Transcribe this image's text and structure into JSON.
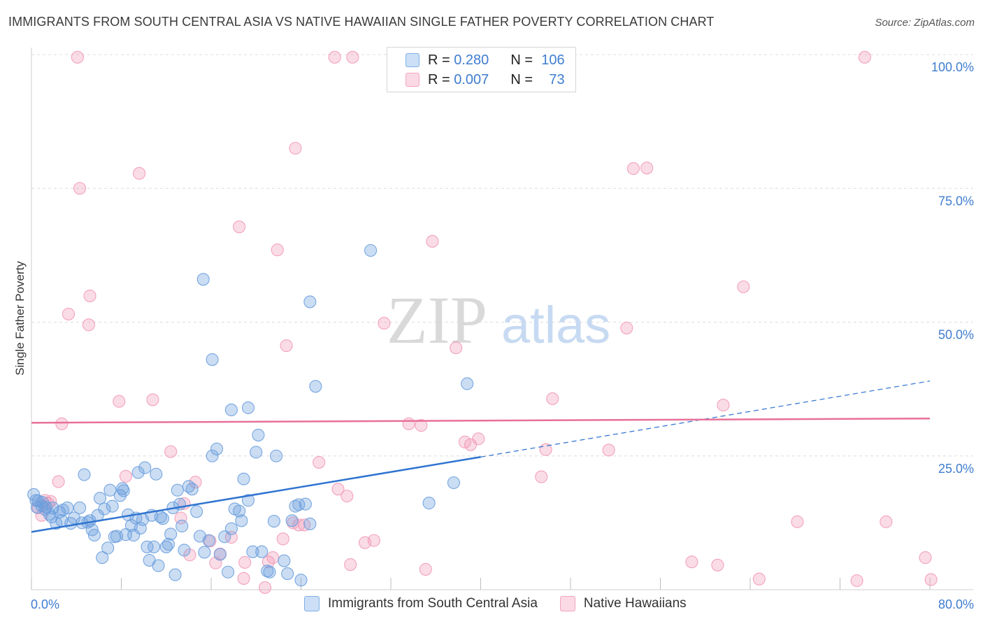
{
  "title": "IMMIGRANTS FROM SOUTH CENTRAL ASIA VS NATIVE HAWAIIAN SINGLE FATHER POVERTY CORRELATION CHART",
  "source": "Source: ZipAtlas.com",
  "watermark": {
    "zip": "ZIP",
    "atlas": "atlas"
  },
  "legend": {
    "r_label": "R =",
    "n_label": "N =",
    "rows": [
      {
        "r": "0.280",
        "n": "106",
        "color": "#7fb0e8"
      },
      {
        "r": "0.007",
        "n": "73",
        "color": "#f4a3bd"
      }
    ]
  },
  "colors": {
    "blue": "#6a9fde",
    "blue_line": "#2f74d0",
    "pink": "#f29ab7",
    "pink_line": "#e8709a",
    "axis_text": "#3f7dd0"
  },
  "chart_data": {
    "type": "scatter",
    "title": "IMMIGRANTS FROM SOUTH CENTRAL ASIA VS NATIVE HAWAIIAN SINGLE FATHER POVERTY CORRELATION CHART",
    "ylabel": "Single Father Poverty",
    "xlabel": "",
    "xlim": [
      0,
      80
    ],
    "ylim": [
      0,
      100
    ],
    "x_tick_labels": [
      "0.0%",
      "80.0%"
    ],
    "y_ticks": [
      25,
      50,
      75,
      100
    ],
    "y_tick_labels": [
      "25.0%",
      "50.0%",
      "75.0%",
      "100.0%"
    ],
    "grid": true,
    "legend_position": "top-center",
    "series": [
      {
        "name": "Immigrants from South Central Asia",
        "color": "#6a9fde",
        "trend": {
          "x0": 0,
          "y0": 10.8,
          "x1": 40,
          "y1": 24.8,
          "dashed_to_x": 80,
          "dashed_to_y": 39
        },
        "points": [
          [
            0.2,
            17.8
          ],
          [
            0.4,
            16.7
          ],
          [
            0.5,
            15.4
          ],
          [
            0.6,
            16.6
          ],
          [
            0.9,
            15.7
          ],
          [
            1.0,
            16.3
          ],
          [
            1.2,
            15.0
          ],
          [
            1.3,
            15.4
          ],
          [
            1.6,
            14.1
          ],
          [
            1.8,
            13.6
          ],
          [
            1.9,
            15.3
          ],
          [
            2.2,
            12.4
          ],
          [
            2.5,
            14.5
          ],
          [
            2.7,
            12.9
          ],
          [
            2.8,
            14.9
          ],
          [
            3.2,
            15.3
          ],
          [
            3.5,
            12.4
          ],
          [
            3.8,
            13.4
          ],
          [
            4.3,
            15.3
          ],
          [
            4.5,
            12.5
          ],
          [
            4.7,
            21.5
          ],
          [
            5.0,
            12.6
          ],
          [
            5.2,
            12.9
          ],
          [
            5.4,
            11.2
          ],
          [
            5.6,
            10.2
          ],
          [
            5.9,
            13.9
          ],
          [
            6.1,
            17.1
          ],
          [
            6.3,
            6.0
          ],
          [
            6.5,
            15.1
          ],
          [
            6.8,
            7.8
          ],
          [
            7.0,
            18.6
          ],
          [
            7.2,
            15.6
          ],
          [
            7.4,
            9.9
          ],
          [
            7.6,
            10.0
          ],
          [
            7.9,
            17.6
          ],
          [
            8.1,
            18.9
          ],
          [
            8.2,
            18.5
          ],
          [
            8.4,
            10.3
          ],
          [
            8.6,
            14.0
          ],
          [
            8.9,
            12.0
          ],
          [
            9.1,
            10.2
          ],
          [
            9.3,
            13.4
          ],
          [
            9.5,
            21.9
          ],
          [
            9.7,
            11.5
          ],
          [
            9.9,
            13.1
          ],
          [
            10.1,
            22.8
          ],
          [
            10.3,
            8.0
          ],
          [
            10.5,
            5.5
          ],
          [
            10.7,
            13.9
          ],
          [
            10.9,
            8.0
          ],
          [
            11.1,
            21.6
          ],
          [
            11.3,
            4.5
          ],
          [
            11.5,
            13.6
          ],
          [
            11.7,
            13.3
          ],
          [
            12.0,
            8.0
          ],
          [
            12.2,
            8.5
          ],
          [
            12.4,
            10.4
          ],
          [
            12.6,
            15.3
          ],
          [
            12.8,
            2.8
          ],
          [
            13.0,
            18.6
          ],
          [
            13.2,
            16.0
          ],
          [
            13.4,
            11.9
          ],
          [
            13.6,
            7.4
          ],
          [
            14.0,
            19.3
          ],
          [
            14.3,
            18.8
          ],
          [
            14.7,
            14.6
          ],
          [
            15.0,
            10.0
          ],
          [
            15.4,
            7.0
          ],
          [
            15.8,
            9.2
          ],
          [
            16.1,
            25.0
          ],
          [
            16.5,
            26.3
          ],
          [
            16.8,
            6.6
          ],
          [
            17.2,
            9.9
          ],
          [
            17.5,
            3.3
          ],
          [
            17.8,
            11.4
          ],
          [
            18.1,
            15.1
          ],
          [
            18.5,
            14.7
          ],
          [
            18.7,
            12.9
          ],
          [
            18.9,
            20.7
          ],
          [
            19.3,
            16.7
          ],
          [
            19.7,
            7.1
          ],
          [
            20.0,
            25.7
          ],
          [
            20.2,
            28.9
          ],
          [
            20.5,
            7.1
          ],
          [
            21.0,
            3.5
          ],
          [
            21.2,
            3.3
          ],
          [
            21.6,
            12.8
          ],
          [
            21.8,
            25.0
          ],
          [
            22.5,
            5.4
          ],
          [
            22.8,
            3.0
          ],
          [
            23.2,
            12.9
          ],
          [
            23.5,
            15.6
          ],
          [
            23.8,
            15.9
          ],
          [
            24.4,
            16.0
          ],
          [
            24.8,
            12.3
          ],
          [
            25.3,
            38.0
          ],
          [
            15.3,
            58.0
          ],
          [
            17.8,
            33.6
          ],
          [
            19.3,
            34.0
          ],
          [
            16.1,
            43.0
          ],
          [
            30.2,
            63.4
          ],
          [
            24.8,
            53.8
          ],
          [
            35.4,
            16.2
          ],
          [
            37.6,
            20.0
          ],
          [
            38.8,
            38.5
          ],
          [
            24.0,
            1.8
          ]
        ]
      },
      {
        "name": "Native Hawaiians",
        "color": "#f29ab7",
        "trend": {
          "x0": 0,
          "y0": 31.2,
          "x1": 80,
          "y1": 32.0
        },
        "points": [
          [
            0.6,
            15.3
          ],
          [
            0.9,
            13.9
          ],
          [
            1.2,
            16.7
          ],
          [
            1.5,
            16.1
          ],
          [
            1.7,
            16.5
          ],
          [
            2.4,
            20.2
          ],
          [
            2.7,
            31.0
          ],
          [
            3.3,
            51.5
          ],
          [
            4.1,
            99.5
          ],
          [
            4.3,
            75.0
          ],
          [
            5.1,
            49.5
          ],
          [
            5.2,
            54.9
          ],
          [
            7.8,
            35.2
          ],
          [
            8.4,
            21.2
          ],
          [
            9.6,
            77.8
          ],
          [
            10.8,
            35.5
          ],
          [
            12.4,
            25.8
          ],
          [
            13.3,
            13.4
          ],
          [
            13.6,
            16.1
          ],
          [
            14.1,
            6.5
          ],
          [
            14.6,
            20.1
          ],
          [
            15.9,
            9.1
          ],
          [
            16.4,
            5.0
          ],
          [
            16.8,
            6.7
          ],
          [
            17.8,
            9.8
          ],
          [
            18.5,
            67.8
          ],
          [
            18.9,
            2.1
          ],
          [
            19.0,
            5.1
          ],
          [
            20.8,
            0.4
          ],
          [
            21.1,
            5.2
          ],
          [
            21.5,
            6.0
          ],
          [
            21.9,
            63.5
          ],
          [
            22.4,
            9.5
          ],
          [
            22.7,
            45.6
          ],
          [
            23.5,
            82.5
          ],
          [
            23.8,
            12.1
          ],
          [
            24.3,
            12.1
          ],
          [
            25.6,
            23.8
          ],
          [
            27.0,
            99.5
          ],
          [
            27.3,
            18.8
          ],
          [
            28.1,
            17.5
          ],
          [
            28.6,
            99.5
          ],
          [
            28.4,
            4.7
          ],
          [
            29.7,
            8.8
          ],
          [
            30.5,
            9.2
          ],
          [
            31.4,
            49.8
          ],
          [
            33.6,
            31.0
          ],
          [
            34.7,
            30.7
          ],
          [
            35.1,
            3.8
          ],
          [
            35.7,
            65.1
          ],
          [
            37.8,
            45.2
          ],
          [
            38.6,
            27.6
          ],
          [
            39.1,
            27.1
          ],
          [
            39.8,
            28.2
          ],
          [
            45.4,
            21.1
          ],
          [
            45.8,
            26.2
          ],
          [
            46.4,
            35.7
          ],
          [
            51.4,
            26.1
          ],
          [
            53.0,
            48.9
          ],
          [
            53.6,
            78.7
          ],
          [
            54.8,
            78.8
          ],
          [
            58.8,
            5.2
          ],
          [
            61.1,
            4.6
          ],
          [
            61.6,
            34.5
          ],
          [
            63.4,
            56.6
          ],
          [
            64.8,
            2.0
          ],
          [
            68.2,
            12.7
          ],
          [
            73.5,
            1.7
          ],
          [
            74.2,
            99.5
          ],
          [
            76.1,
            12.7
          ],
          [
            79.6,
            6.0
          ],
          [
            80.1,
            1.9
          ],
          [
            23.3,
            12.5
          ]
        ]
      }
    ]
  }
}
